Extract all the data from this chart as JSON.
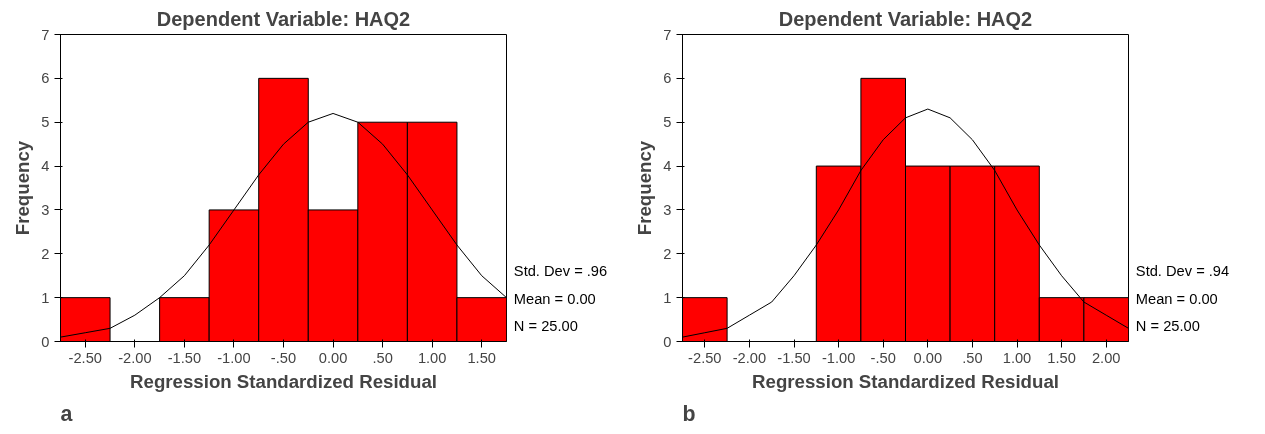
{
  "chart_data": [
    {
      "type": "histogram",
      "title": "Dependent Variable: HAQ2",
      "xlabel": "Regression Standardized Residual",
      "ylabel": "Frequency",
      "color": "#ff0000",
      "bins": [
        -2.75,
        -2.25,
        -1.75,
        -1.25,
        -0.75,
        -0.25,
        0.25,
        0.75,
        1.25,
        1.75
      ],
      "values": [
        1,
        0,
        1,
        3,
        6,
        3,
        5,
        5,
        1
      ],
      "series": [
        {
          "type": "line",
          "color": "#000000",
          "x": [
            -2.75,
            -2.5,
            -2.25,
            -2,
            -1.75,
            -1.5,
            -1.25,
            -1,
            -0.75,
            -0.5,
            -0.25,
            0,
            0.25,
            0.5,
            0.75,
            1,
            1.25,
            1.5,
            1.75
          ],
          "values": [
            0.1,
            0.2,
            0.3,
            0.6,
            1.0,
            1.5,
            2.2,
            3.0,
            3.8,
            4.5,
            5.0,
            5.2,
            5.0,
            4.5,
            3.8,
            3.0,
            2.2,
            1.5,
            1.0
          ]
        }
      ],
      "xlim": [
        -2.75,
        1.75
      ],
      "ylim": [
        0,
        7
      ],
      "xticks": [
        {
          "value": -2.5,
          "label": "-2.50"
        },
        {
          "value": -2,
          "label": "-2.00"
        },
        {
          "value": -1.5,
          "label": "-1.50"
        },
        {
          "value": -1,
          "label": "-1.00"
        },
        {
          "value": -0.5,
          "label": "-.50"
        },
        {
          "value": 0,
          "label": "0.00"
        },
        {
          "value": 0.5,
          "label": ".50"
        },
        {
          "value": 1,
          "label": "1.00"
        },
        {
          "value": 1.5,
          "label": "1.50"
        }
      ],
      "yticks": [
        0,
        1,
        2,
        3,
        4,
        5,
        6,
        7
      ],
      "grid": false,
      "annotations": [
        "Std. Dev = .96",
        "Mean = 0.00",
        "N = 25.00",
        "a"
      ]
    },
    {
      "type": "histogram",
      "title": "Dependent Variable: HAQ2",
      "xlabel": "Regression Standardized Residual",
      "ylabel": "Frequency",
      "color": "#ff0000",
      "bins": [
        -2.75,
        -2.25,
        -1.75,
        -1.25,
        -0.75,
        -0.25,
        0.25,
        0.75,
        1.25,
        1.75,
        2.25
      ],
      "values": [
        1,
        0,
        0,
        4,
        6,
        4,
        4,
        4,
        1,
        1
      ],
      "series": [
        {
          "type": "line",
          "color": "#000000",
          "x": [
            -2.75,
            -2.5,
            -2.25,
            -2,
            -1.75,
            -1.5,
            -1.25,
            -1,
            -0.75,
            -0.5,
            -0.25,
            0,
            0.25,
            0.5,
            0.75,
            1,
            1.25,
            1.5,
            1.75,
            2,
            2.25
          ],
          "values": [
            0.1,
            0.2,
            0.3,
            0.6,
            0.9,
            1.5,
            2.2,
            3.0,
            3.9,
            4.6,
            5.1,
            5.3,
            5.1,
            4.6,
            3.9,
            3.0,
            2.2,
            1.5,
            0.9,
            0.6,
            0.3
          ]
        }
      ],
      "xlim": [
        -2.75,
        2.25
      ],
      "ylim": [
        0,
        7
      ],
      "xticks": [
        {
          "value": -2.5,
          "label": "-2.50"
        },
        {
          "value": -2,
          "label": "-2.00"
        },
        {
          "value": -1.5,
          "label": "-1.50"
        },
        {
          "value": -1,
          "label": "-1.00"
        },
        {
          "value": -0.5,
          "label": "-.50"
        },
        {
          "value": 0,
          "label": "0.00"
        },
        {
          "value": 0.5,
          "label": ".50"
        },
        {
          "value": 1,
          "label": "1.00"
        },
        {
          "value": 1.5,
          "label": "1.50"
        },
        {
          "value": 2,
          "label": "2.00"
        }
      ],
      "yticks": [
        0,
        1,
        2,
        3,
        4,
        5,
        6,
        7
      ],
      "grid": false,
      "annotations": [
        "Std. Dev = .94",
        "Mean = 0.00",
        "N = 25.00",
        "b"
      ]
    }
  ]
}
